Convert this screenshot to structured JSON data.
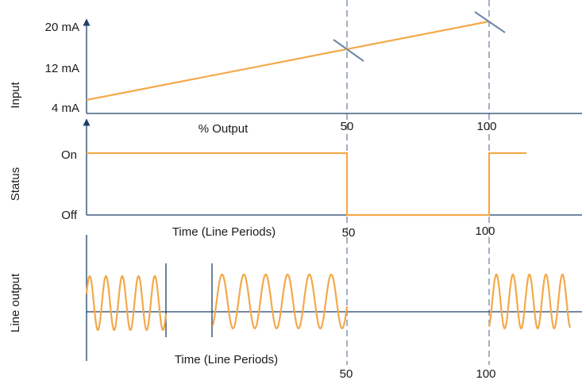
{
  "colors": {
    "signal": "#f4a94a",
    "axis": "#1f3f66",
    "guide": "#6f86a6",
    "text": "#1a1a1a"
  },
  "panels": {
    "input": {
      "ylabel": "Input",
      "xlabel": "% Output",
      "y_ticks": [
        "20 mA",
        "12 mA",
        "4 mA"
      ],
      "x_ticks": [
        "50",
        "100"
      ]
    },
    "status": {
      "ylabel": "Status",
      "xlabel": "Time (Line Periods)",
      "y_ticks": [
        "On",
        "Off"
      ],
      "x_ticks": [
        "50",
        "100"
      ]
    },
    "line_output": {
      "ylabel": "Line output",
      "xlabel": "Time (Line Periods)",
      "x_ticks": [
        "50",
        "100"
      ]
    }
  }
}
